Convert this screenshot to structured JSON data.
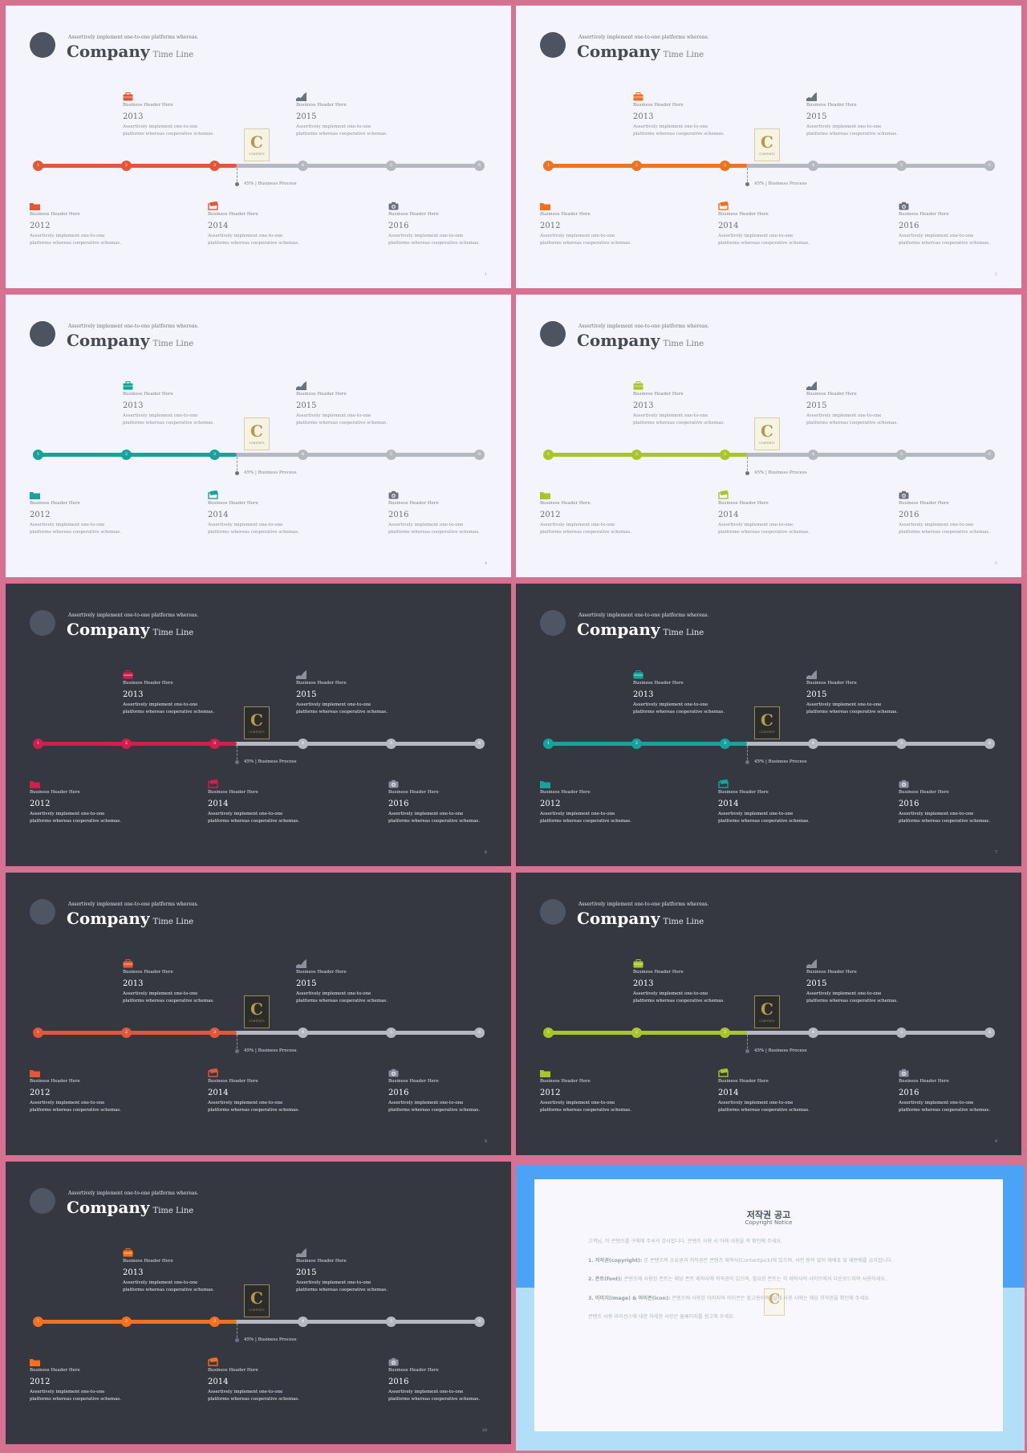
{
  "slide_common": {
    "tagline": "Assertively implement one-to-one platforms whereas.",
    "title": "Company",
    "subtitle": "Time Line",
    "badge_letter": "C",
    "badge_word": "CONTENTS",
    "percent_label": "45% | Business Process",
    "items": [
      {
        "head": "Business Header Here",
        "year": "2013",
        "desc": "Assertively implement one-to-one platforms whereas cooperative schemas."
      },
      {
        "head": "Business Header Here",
        "year": "2015",
        "desc": "Assertively implement one-to-one platforms whereas cooperative schemas."
      },
      {
        "head": "Business Header Here",
        "year": "2012",
        "desc": "Assertively implement one-to-one platforms whereas cooperative schemas."
      },
      {
        "head": "Business Header Here",
        "year": "2014",
        "desc": "Assertively implement one-to-one platforms whereas cooperative schemas."
      },
      {
        "head": "Business Header Here",
        "year": "2016",
        "desc": "Assertively implement one-to-one platforms whereas cooperative schemas."
      }
    ],
    "node_labels": [
      "1",
      "2",
      "3",
      "4",
      "5",
      "6"
    ],
    "progress_fraction": 0.45
  },
  "slides": [
    {
      "theme": "light",
      "accent": "#e2573a",
      "page": "1"
    },
    {
      "theme": "light",
      "accent": "#f07220",
      "page": "2"
    },
    {
      "theme": "light",
      "accent": "#16a39c",
      "page": "4"
    },
    {
      "theme": "light",
      "accent": "#a9c52a",
      "page": "5"
    },
    {
      "theme": "dark",
      "accent": "#d21e4d",
      "page": "6"
    },
    {
      "theme": "dark",
      "accent": "#16a39c",
      "page": "7"
    },
    {
      "theme": "dark",
      "accent": "#e2573a",
      "page": "8"
    },
    {
      "theme": "dark",
      "accent": "#a9c52a",
      "page": "9"
    },
    {
      "theme": "dark",
      "accent": "#f07220",
      "page": "10"
    }
  ],
  "icons": [
    "briefcase-icon",
    "chart-icon",
    "folder-icon",
    "cards-icon",
    "camera-icon"
  ],
  "notice": {
    "title": "저작권 공고",
    "subtitle": "Copyright Notice",
    "intro": "고객님, 이 콘텐츠를 구매해 주셔서 감사합니다. 콘텐츠 사용 시 아래 내용을 꼭 확인해 주세요.",
    "sections": [
      {
        "label": "1. 저작권(copyright):",
        "text": "본 콘텐츠의 소유권과 저작권은 콘텐츠 제작사(Contentpick)에 있으며, 사전 동의 없이 재배포 및 재판매를 금지합니다."
      },
      {
        "label": "2. 폰트(font):",
        "text": "콘텐츠에 사용된 폰트는 해당 폰트 제작사에 저작권이 있으며, 필요한 폰트는 각 제작사의 사이트에서 다운로드하여 사용하세요."
      },
      {
        "label": "3. 이미지(image) & 아이콘(icon):",
        "text": "콘텐츠에 사용된 이미지와 아이콘은 참고용이며, 실제 사용 시에는 해당 저작권을 확인해 주세요."
      }
    ],
    "outro": "콘텐츠 사용 라이선스에 대한 자세한 사항은 홈페이지를 참고해 주세요."
  }
}
